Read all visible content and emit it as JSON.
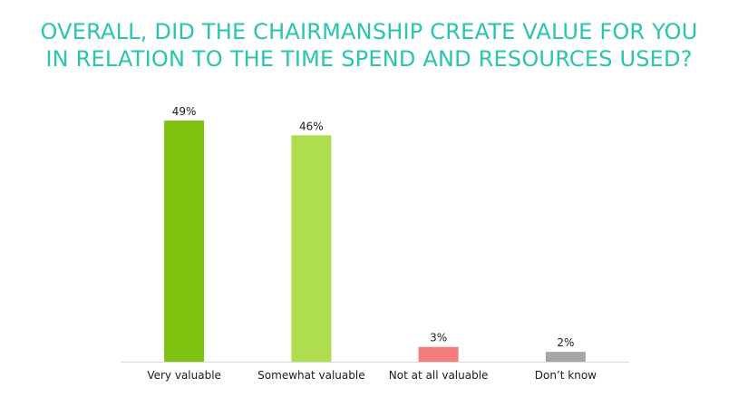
{
  "title_lines": [
    "OVERALL, DID THE CHAIRMANSHIP CREATE VALUE FOR YOU",
    "IN RELATION TO THE TIME SPEND AND RESOURCES USED?"
  ],
  "chart_data": {
    "type": "bar",
    "title": "OVERALL, DID THE CHAIRMANSHIP CREATE VALUE FOR YOU IN RELATION TO THE TIME SPEND AND RESOURCES USED?",
    "categories": [
      "Very valuable",
      "Somewhat valuable",
      "Not at all valuable",
      "Don’t know"
    ],
    "values": [
      49,
      46,
      3,
      2
    ],
    "value_labels": [
      "49%",
      "46%",
      "3%",
      "2%"
    ],
    "colors": [
      "#7dc20e",
      "#aedd4d",
      "#f47c7c",
      "#a6a6a6"
    ],
    "ylim": [
      0,
      50
    ],
    "grid": false,
    "legend": "none",
    "axis_color": "#d9d9d9"
  }
}
